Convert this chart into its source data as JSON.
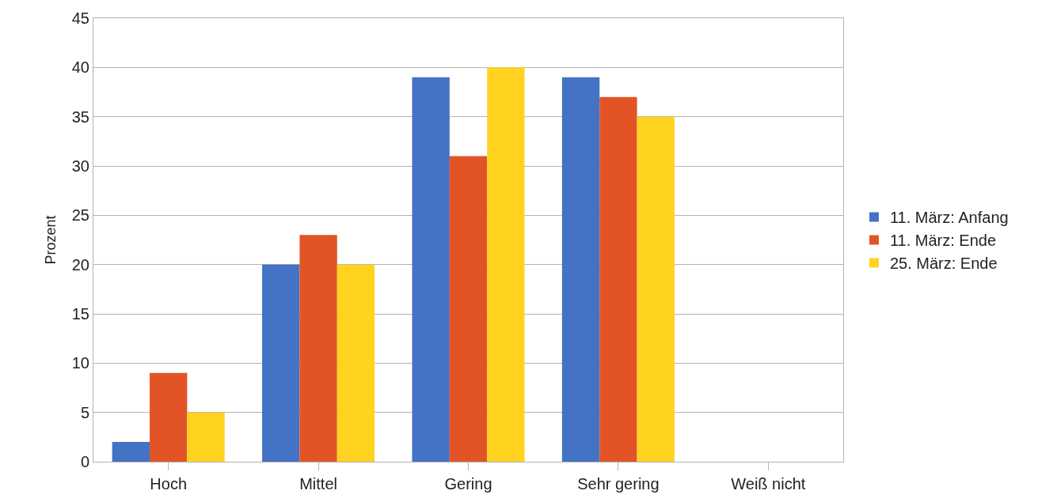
{
  "chart_data": {
    "type": "bar",
    "ylabel": "Prozent",
    "categories": [
      "Hoch",
      "Mittel",
      "Gering",
      "Sehr gering",
      "Weiß nicht"
    ],
    "series": [
      {
        "name": "11. März: Anfang",
        "color": "#4472c4",
        "values": [
          2,
          20,
          39,
          39,
          0
        ]
      },
      {
        "name": "11. März: Ende",
        "color": "#e25426",
        "values": [
          9,
          23,
          31,
          37,
          0
        ]
      },
      {
        "name": "25. März: Ende",
        "color": "#ffd320",
        "values": [
          5,
          20,
          40,
          35,
          0
        ]
      }
    ],
    "ylim": [
      0,
      45
    ],
    "yticks": [
      0,
      5,
      10,
      15,
      20,
      25,
      30,
      35,
      40,
      45
    ],
    "grid": "y",
    "legend": "right"
  }
}
